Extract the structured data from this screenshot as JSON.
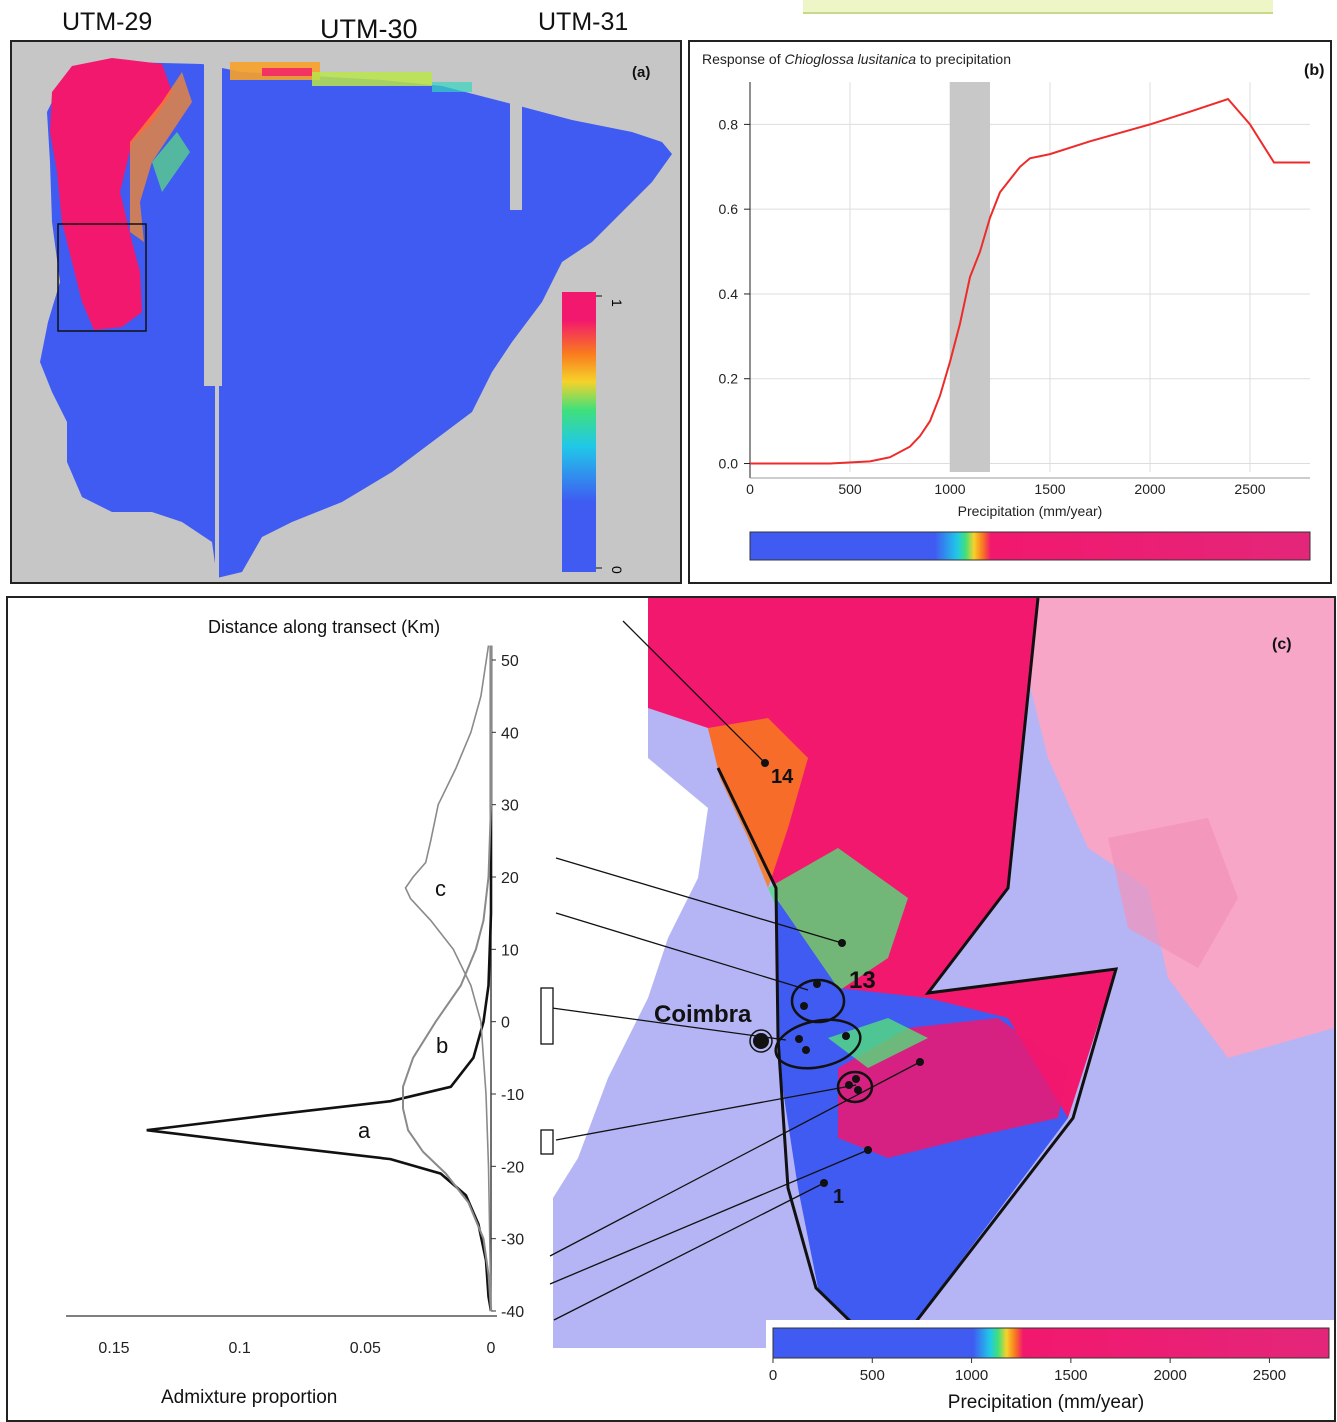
{
  "utm_labels": [
    "UTM-29",
    "UTM-30",
    "UTM-31"
  ],
  "panel_a": {
    "label": "(a)",
    "colorbar": {
      "max": "1",
      "min": "0"
    }
  },
  "panel_b": {
    "label": "(b)",
    "title_prefix": "Response of ",
    "title_species": "Chioglossa lusitanica",
    "title_suffix": "  to precipitation"
  },
  "panel_c": {
    "label": "(c)",
    "transect_label": "Distance along transect (Km)",
    "admixture_label": "Admixture proportion",
    "curve_labels": [
      "a",
      "b",
      "c"
    ],
    "city": "Coimbra",
    "site_labels": [
      "14",
      "13",
      "1"
    ],
    "precip_label": "Precipitation (mm/year)",
    "colorbar_ticks": [
      "0",
      "500",
      "1000",
      "1500",
      "2000",
      "2500"
    ]
  },
  "colors": {
    "low": "#3f5bf2",
    "high": "#f2186e",
    "curve": "#ee2b2b",
    "shade": "#c8c8c8",
    "background_map": "#b5b5f5"
  },
  "chart_data": [
    {
      "type": "line",
      "title": "Response of Chioglossa lusitanica to precipitation",
      "xlabel": "Precipitation (mm/year)",
      "ylabel": "",
      "xlim": [
        0,
        2800
      ],
      "ylim": [
        -0.02,
        0.9
      ],
      "xticks": [
        0,
        500,
        1000,
        1500,
        2000,
        2500
      ],
      "yticks": [
        0.0,
        0.2,
        0.4,
        0.6,
        0.8
      ],
      "grid": true,
      "shaded_band": [
        1000,
        1200
      ],
      "series": [
        {
          "x": [
            0,
            400,
            600,
            700,
            800,
            850,
            900,
            950,
            1000,
            1050,
            1100,
            1150,
            1200,
            1250,
            1300,
            1350,
            1400,
            1500,
            1700,
            2000,
            2200,
            2390,
            2500,
            2620,
            2800
          ],
          "y": [
            0.0,
            0.0,
            0.005,
            0.015,
            0.04,
            0.065,
            0.1,
            0.16,
            0.24,
            0.33,
            0.44,
            0.5,
            0.58,
            0.64,
            0.67,
            0.7,
            0.72,
            0.73,
            0.76,
            0.8,
            0.83,
            0.86,
            0.8,
            0.71,
            0.71
          ]
        }
      ]
    },
    {
      "type": "line",
      "title": "",
      "xlabel": "Admixture proportion",
      "ylabel": "Distance along transect (Km)",
      "xlim": [
        0.15,
        0
      ],
      "ylim": [
        -40,
        52
      ],
      "xticks": [
        0.15,
        0.1,
        0.05,
        0
      ],
      "yticks": [
        50,
        40,
        30,
        20,
        10,
        0,
        -10,
        -20,
        -30,
        -40
      ],
      "series": [
        {
          "name": "a",
          "y": [
            52,
            30,
            15,
            5,
            0,
            -5,
            -9,
            -11,
            -13,
            -14.5,
            -15,
            -15.5,
            -17,
            -19,
            -21,
            -24,
            -28,
            -33,
            -38,
            -40
          ],
          "x": [
            0.0,
            0.0,
            0.0,
            0.001,
            0.003,
            0.007,
            0.016,
            0.04,
            0.09,
            0.125,
            0.137,
            0.125,
            0.09,
            0.04,
            0.02,
            0.01,
            0.005,
            0.002,
            0.001,
            0.0
          ]
        },
        {
          "name": "b",
          "y": [
            52,
            30,
            20,
            14,
            10,
            5,
            0,
            -5,
            -9,
            -12,
            -15,
            -18,
            -21,
            -25,
            -30,
            -35,
            -40
          ],
          "x": [
            0.0,
            0.0,
            0.001,
            0.003,
            0.006,
            0.012,
            0.022,
            0.031,
            0.035,
            0.035,
            0.033,
            0.027,
            0.018,
            0.009,
            0.003,
            0.001,
            0.0
          ]
        },
        {
          "name": "c",
          "y": [
            52,
            45,
            40,
            35,
            30,
            25,
            22,
            20,
            18.5,
            17,
            14,
            10,
            5,
            0,
            -10,
            -20,
            -40
          ],
          "x": [
            0.001,
            0.004,
            0.008,
            0.014,
            0.021,
            0.024,
            0.026,
            0.031,
            0.034,
            0.032,
            0.024,
            0.015,
            0.008,
            0.004,
            0.002,
            0.001,
            0.0
          ]
        }
      ]
    }
  ]
}
